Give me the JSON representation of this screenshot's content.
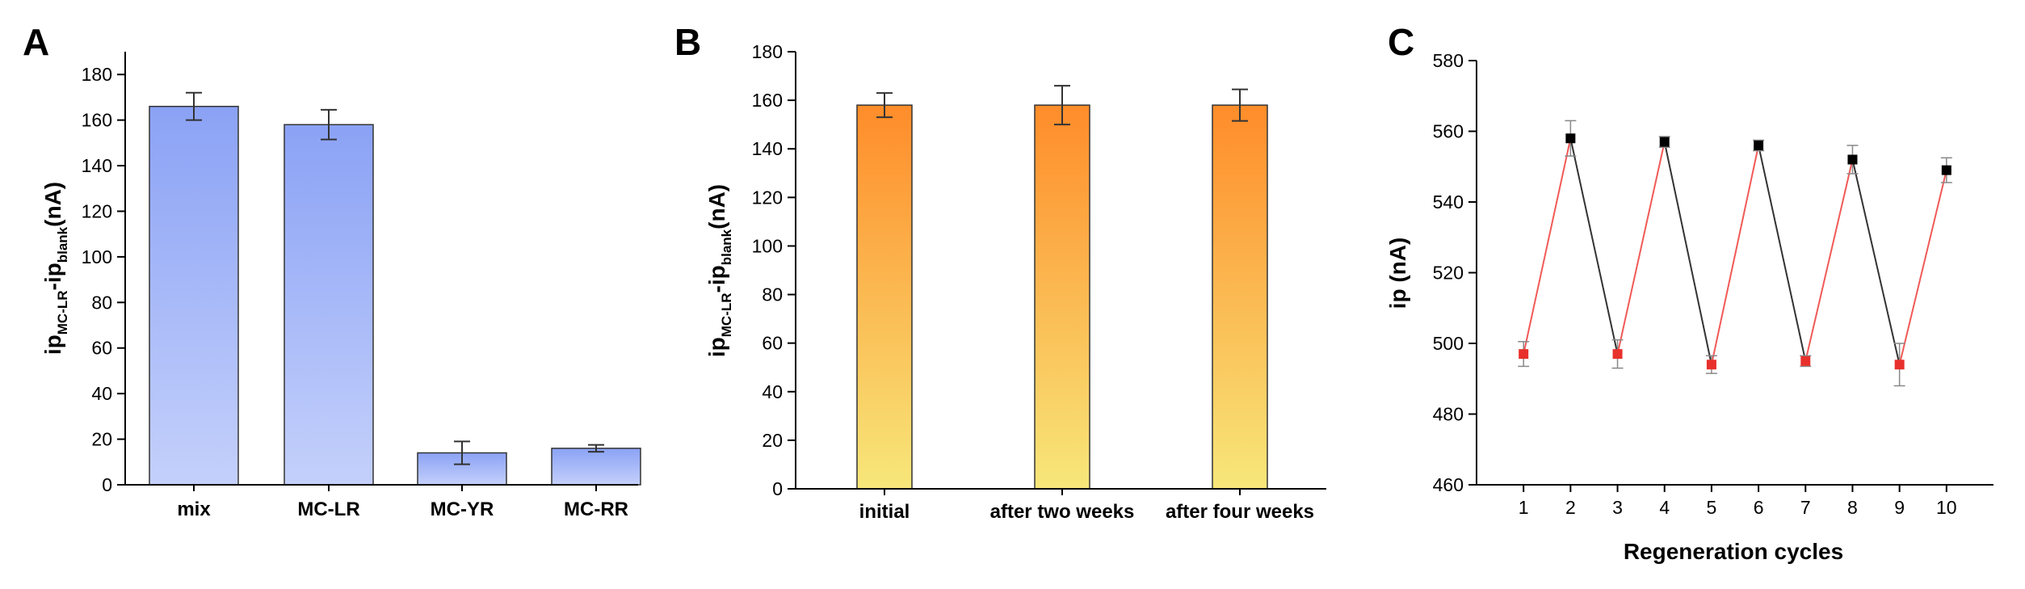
{
  "chart_data": [
    {
      "id": "A",
      "type": "bar",
      "panel_label": "A",
      "categories": [
        "mix",
        "MC-LR",
        "MC-YR",
        "MC-RR"
      ],
      "values": [
        166,
        158,
        14,
        16
      ],
      "errors": [
        6,
        6.5,
        5,
        1.5
      ],
      "ylabel": {
        "base1": "ip",
        "sub1": "MC-LR",
        "sep": "-",
        "base2": "ip",
        "sub2": "blank",
        "unit": "(nA)"
      },
      "ylim": [
        0,
        190
      ],
      "yticks": [
        0,
        20,
        40,
        60,
        80,
        100,
        120,
        140,
        160,
        180
      ],
      "colors": {
        "top": "#8ba2f5",
        "bottom": "#c4d0fb"
      }
    },
    {
      "id": "B",
      "type": "bar",
      "panel_label": "B",
      "categories": [
        "initial",
        "after two weeks",
        "after four weeks"
      ],
      "values": [
        158,
        158,
        158
      ],
      "errors": [
        5,
        8,
        6.5
      ],
      "ylabel": {
        "base1": "ip",
        "sub1": "MC-LR",
        "sep": "-",
        "base2": "ip",
        "sub2": "blank",
        "unit": "(nA)"
      },
      "ylim": [
        0,
        180
      ],
      "yticks": [
        0,
        20,
        40,
        60,
        80,
        100,
        120,
        140,
        160,
        180
      ],
      "colors": {
        "top": "#ff8c2a",
        "bottom": "#f7e77a"
      }
    },
    {
      "id": "C",
      "type": "line",
      "panel_label": "C",
      "x": [
        1,
        2,
        3,
        4,
        5,
        6,
        7,
        8,
        9,
        10
      ],
      "y": [
        497,
        558,
        497,
        557,
        494,
        556,
        495,
        552,
        494,
        549
      ],
      "errors": [
        3.5,
        5,
        4,
        1.5,
        2.5,
        1.5,
        1.5,
        4,
        6,
        3.5
      ],
      "xticks": [
        1,
        2,
        3,
        4,
        5,
        6,
        7,
        8,
        9,
        10
      ],
      "yticks": [
        460,
        480,
        500,
        520,
        540,
        560,
        580
      ],
      "xlim": [
        0,
        11
      ],
      "ylim": [
        460,
        580
      ],
      "xlabel": "Regeneration cycles",
      "ylabel": "ip (nA)",
      "colors": {
        "odd_marker": "#e8302c",
        "even_marker": "#000000",
        "rise_line": "#f05a57",
        "fall_line": "#333333"
      }
    }
  ]
}
